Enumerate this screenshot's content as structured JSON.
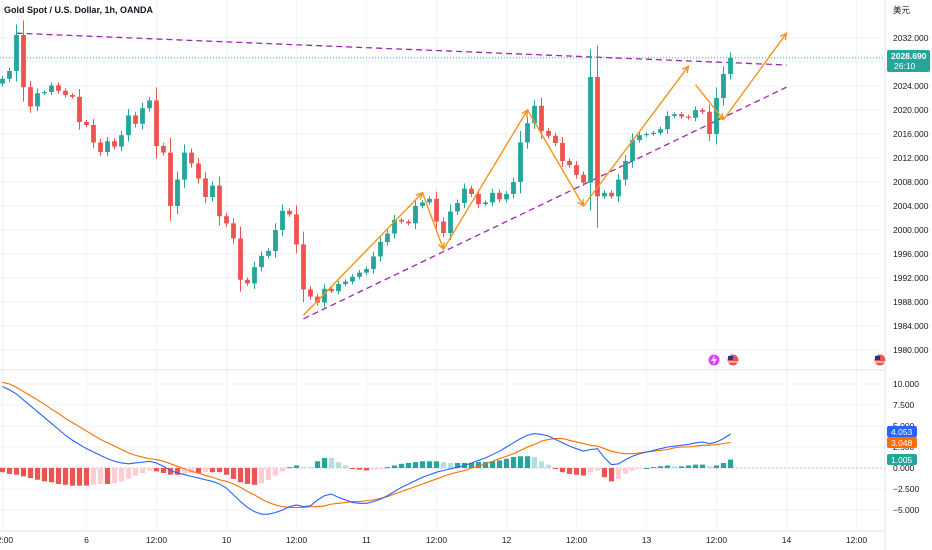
{
  "header": {
    "symbol_title": "Gold Spot / U.S. Dollar, 1h, OANDA",
    "currency_label": "美元"
  },
  "colors": {
    "up": "#26a69a",
    "down": "#ef5350",
    "trendline": "#9c27b0",
    "arrows": "#f7931a",
    "macd_line": "#2962ff",
    "signal_line": "#ff6d00",
    "price_tag": "#26a69a",
    "grid": "#f0f3fa"
  },
  "price_tag": {
    "value": "2028.690",
    "countdown": "26:10"
  },
  "indicator_tags": {
    "macd": "4.053",
    "signal": "3.048",
    "histogram": "1.005"
  },
  "chart_data": [
    {
      "type": "candlestick",
      "title": "Gold Spot / U.S. Dollar, 1h, OANDA",
      "y_ticks": [
        1980,
        1984,
        1988,
        1992,
        1996,
        2000,
        2004,
        2008,
        2012,
        2016,
        2020,
        2024,
        2028,
        2032
      ],
      "y_tick_labels": [
        "1980.000",
        "1984.000",
        "1988.000",
        "1992.000",
        "1996.000",
        "2000.000",
        "2004.000",
        "2008.000",
        "2012.000",
        "2016.000",
        "2020.000",
        "2024.000",
        "2028.000",
        "2032.000"
      ],
      "ylim": [
        1978,
        2035
      ],
      "x_labels": [
        {
          "label": "12:00",
          "bar": 0
        },
        {
          "label": "6",
          "bar": 12
        },
        {
          "label": "12:00",
          "bar": 22
        },
        {
          "label": "10",
          "bar": 32
        },
        {
          "label": "12:00",
          "bar": 42
        },
        {
          "label": "11",
          "bar": 52
        },
        {
          "label": "12:00",
          "bar": 62
        },
        {
          "label": "12",
          "bar": 72
        },
        {
          "label": "12:00",
          "bar": 82
        },
        {
          "label": "13",
          "bar": 92
        },
        {
          "label": "12:00",
          "bar": 102
        },
        {
          "label": "14",
          "bar": 112
        },
        {
          "label": "12:00",
          "bar": 122
        }
      ],
      "closes": [
        2025.2,
        2026.5,
        2032.5,
        2023.8,
        2020.6,
        2022.8,
        2023.0,
        2024.1,
        2023.2,
        2022.5,
        2022.2,
        2018.0,
        2017.5,
        2014.6,
        2013.0,
        2014.8,
        2013.9,
        2015.8,
        2019.1,
        2017.7,
        2020.3,
        2021.6,
        2014.0,
        2012.9,
        2004.0,
        2008.4,
        2012.9,
        2011.1,
        2008.6,
        2005.5,
        2007.4,
        2002.3,
        2001.1,
        1998.6,
        1991.7,
        1991.1,
        1993.8,
        1995.7,
        1996.5,
        2000.0,
        2003.2,
        2002.6,
        1997.6,
        1990.1,
        1988.9,
        1987.9,
        1990.2,
        1989.8,
        1991.0,
        1991.4,
        1992.2,
        1992.9,
        1993.5,
        1995.6,
        1998.0,
        1999.4,
        2001.7,
        2001.4,
        2001.1,
        2004.0,
        2004.6,
        2005.2,
        2001.4,
        1999.5,
        2003.1,
        2004.5,
        2006.9,
        2006.0,
        2004.3,
        2004.6,
        2006.2,
        2005.1,
        2006.0,
        2008.0,
        2014.6,
        2017.8,
        2020.7,
        2016.5,
        2015.7,
        2014.5,
        2011.5,
        2010.8,
        2009.2,
        2007.9,
        2025.5,
        2005.6,
        2006.2,
        2005.6,
        2008.4,
        2011.5,
        2015.0,
        2015.8,
        2016.0,
        2016.2,
        2016.8,
        2019.0,
        2019.3,
        2018.9,
        2018.7,
        2020.0,
        2019.7,
        2016.0,
        2022.0,
        2026.0,
        2028.7
      ],
      "trendlines": [
        {
          "kind": "dashed",
          "from": {
            "bar": 2,
            "value": 2032.8
          },
          "to": {
            "bar": 112,
            "value": 2027.5
          }
        },
        {
          "kind": "dashed",
          "from": {
            "bar": 43,
            "value": 1985.2
          },
          "to": {
            "bar": 112,
            "value": 2023.8
          }
        }
      ],
      "zigzag_arrows": [
        [
          {
            "bar": 43,
            "value": 1985.8
          },
          {
            "bar": 60,
            "value": 2006.2
          },
          {
            "bar": 63,
            "value": 1996.8
          },
          {
            "bar": 75,
            "value": 2020.0
          },
          {
            "bar": 83,
            "value": 2004.0
          },
          {
            "bar": 98,
            "value": 2027.3
          }
        ],
        [
          {
            "bar": 99,
            "value": 2024.2
          },
          {
            "bar": 103,
            "value": 2018.4
          },
          {
            "bar": 112,
            "value": 2032.8
          }
        ]
      ]
    },
    {
      "type": "macd",
      "y_ticks": [
        -5,
        -2.5,
        0,
        2.5,
        5,
        7.5,
        10
      ],
      "y_tick_labels": [
        "−5.000",
        "−2.500",
        "0.000",
        "2.500",
        "5.000",
        "7.500",
        "10.000"
      ],
      "ylim": [
        -6,
        11
      ],
      "series": [
        {
          "kind": "macd",
          "values": [
            9.7,
            9.3,
            8.8,
            8.1,
            7.4,
            6.7,
            6.0,
            5.3,
            4.6,
            3.9,
            3.3,
            2.8,
            2.3,
            1.9,
            1.5,
            1.1,
            0.8,
            0.6,
            0.5,
            0.6,
            0.7,
            0.8,
            0.6,
            0.2,
            -0.3,
            -0.6,
            -0.8,
            -1.0,
            -1.2,
            -1.4,
            -1.6,
            -1.9,
            -2.4,
            -3.2,
            -4.0,
            -4.7,
            -5.2,
            -5.5,
            -5.5,
            -5.3,
            -5.0,
            -4.6,
            -4.4,
            -4.6,
            -4.5,
            -3.8,
            -3.3,
            -3.1,
            -3.5,
            -3.8,
            -4.1,
            -4.2,
            -4.2,
            -4.0,
            -3.7,
            -3.3,
            -2.8,
            -2.3,
            -1.9,
            -1.5,
            -1.1,
            -0.8,
            -0.5,
            -0.3,
            -0.1,
            0.1,
            0.3,
            0.6,
            0.9,
            1.2,
            1.6,
            2.0,
            2.5,
            3.0,
            3.5,
            3.9,
            4.1,
            4.0,
            3.8,
            3.4,
            3.0,
            2.6,
            2.3,
            2.0,
            2.2,
            2.3,
            1.2,
            0.4,
            0.5,
            1.0,
            1.4,
            1.7,
            1.9,
            2.1,
            2.3,
            2.5,
            2.6,
            2.7,
            2.8,
            3.0,
            3.1,
            2.9,
            3.1,
            3.5,
            4.05
          ]
        },
        {
          "kind": "signal",
          "values": [
            10.2,
            10.0,
            9.6,
            9.1,
            8.6,
            8.1,
            7.6,
            7.0,
            6.5,
            5.9,
            5.4,
            4.9,
            4.4,
            3.9,
            3.4,
            3.0,
            2.6,
            2.2,
            1.8,
            1.5,
            1.3,
            1.1,
            1.0,
            0.8,
            0.5,
            0.2,
            -0.1,
            -0.4,
            -0.6,
            -0.9,
            -1.1,
            -1.4,
            -1.6,
            -1.9,
            -2.3,
            -2.8,
            -3.2,
            -3.7,
            -4.1,
            -4.4,
            -4.6,
            -4.7,
            -4.7,
            -4.7,
            -4.6,
            -4.6,
            -4.5,
            -4.3,
            -4.2,
            -4.1,
            -4.0,
            -4.0,
            -3.9,
            -3.8,
            -3.6,
            -3.4,
            -3.1,
            -2.8,
            -2.5,
            -2.2,
            -1.9,
            -1.6,
            -1.3,
            -1.0,
            -0.7,
            -0.5,
            -0.3,
            0.0,
            0.2,
            0.5,
            0.8,
            1.1,
            1.4,
            1.7,
            2.1,
            2.5,
            2.8,
            3.2,
            3.4,
            3.5,
            3.5,
            3.3,
            3.1,
            2.9,
            2.7,
            2.6,
            2.3,
            2.0,
            1.8,
            1.7,
            1.7,
            1.8,
            1.9,
            2.0,
            2.1,
            2.2,
            2.4,
            2.5,
            2.5,
            2.6,
            2.7,
            2.7,
            2.8,
            2.9,
            3.05
          ]
        }
      ]
    }
  ]
}
